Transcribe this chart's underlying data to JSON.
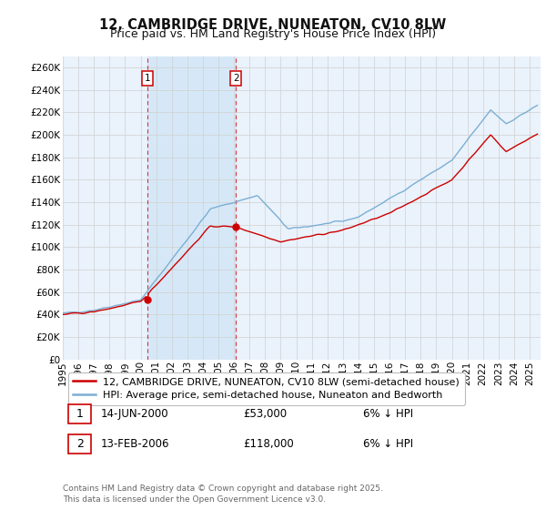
{
  "title": "12, CAMBRIDGE DRIVE, NUNEATON, CV10 8LW",
  "subtitle": "Price paid vs. HM Land Registry's House Price Index (HPI)",
  "ylim": [
    0,
    270000
  ],
  "yticks": [
    0,
    20000,
    40000,
    60000,
    80000,
    100000,
    120000,
    140000,
    160000,
    180000,
    200000,
    220000,
    240000,
    260000
  ],
  "xstart_year": 1995,
  "xend_year": 2025,
  "transaction1_date": 2000.45,
  "transaction1_price": 53000,
  "transaction2_date": 2006.12,
  "transaction2_price": 118000,
  "red_line_color": "#cc0000",
  "blue_line_color": "#7bafd4",
  "fill_color": "#d6e8f7",
  "grid_color": "#d0d0d0",
  "plot_bg_color": "#eaf2fb",
  "legend_line1": "12, CAMBRIDGE DRIVE, NUNEATON, CV10 8LW (semi-detached house)",
  "legend_line2": "HPI: Average price, semi-detached house, Nuneaton and Bedworth",
  "footer": "Contains HM Land Registry data © Crown copyright and database right 2025.\nThis data is licensed under the Open Government Licence v3.0.",
  "title_fontsize": 10.5,
  "subtitle_fontsize": 9,
  "tick_fontsize": 7.5,
  "legend_fontsize": 8,
  "annotation_fontsize": 8.5,
  "footer_fontsize": 6.5
}
